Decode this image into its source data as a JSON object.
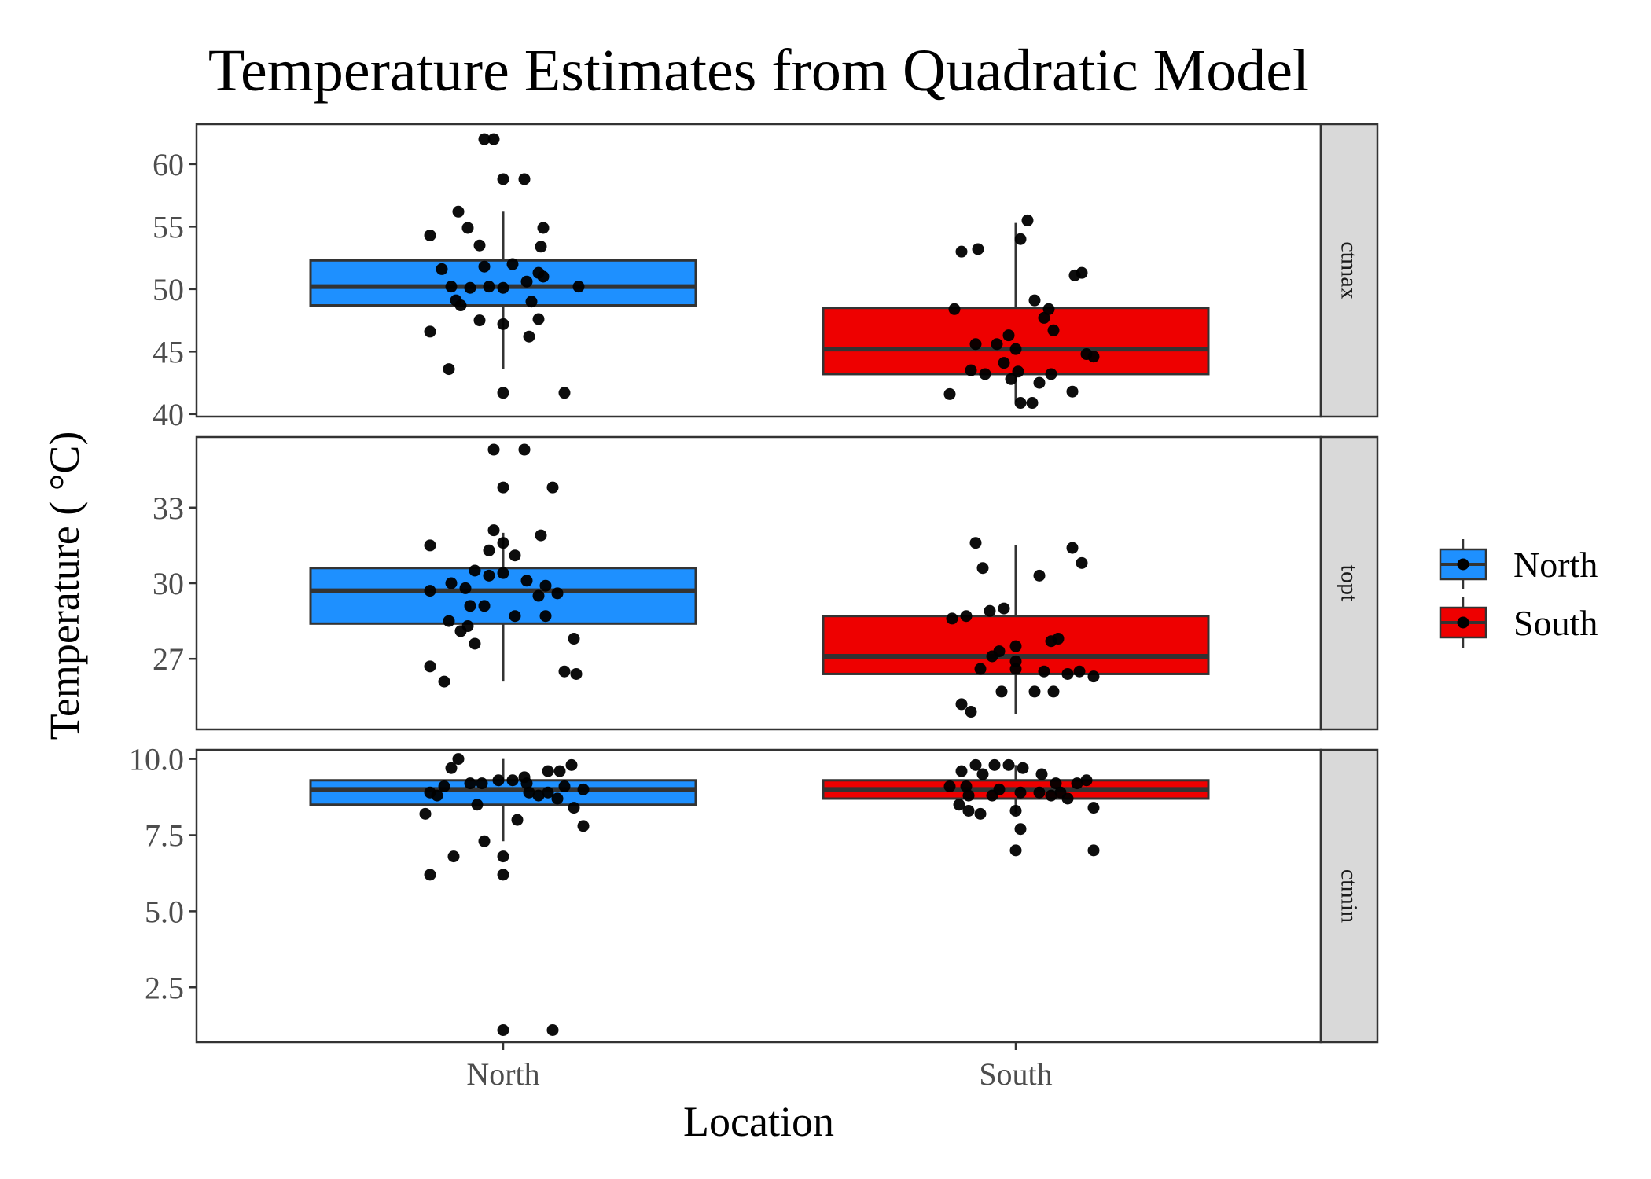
{
  "chart_data": {
    "type": "boxplot",
    "title": "Temperature Estimates from Quadratic Model",
    "xlabel": "Location",
    "ylabel": "Temperature ( °C)",
    "categories": [
      "North",
      "South"
    ],
    "legend": {
      "position": "right",
      "entries": [
        {
          "name": "North",
          "color": "#1e90ff"
        },
        {
          "name": "South",
          "color": "#ee0000"
        }
      ]
    },
    "grid": false,
    "facets": [
      {
        "label": "ctmax",
        "ylim": [
          39.8,
          63.2
        ],
        "yticks": [
          "40",
          "45",
          "50",
          "55",
          "60"
        ],
        "groups": [
          {
            "name": "North",
            "box": {
              "q1": 48.7,
              "median": 50.2,
              "q3": 52.3,
              "whisker_low": 43.6,
              "whisker_high": 56.2
            },
            "points": [
              [
                -0.08,
                62
              ],
              [
                -0.04,
                62
              ],
              [
                0.0,
                58.8
              ],
              [
                0.09,
                58.8
              ],
              [
                -0.19,
                56.2
              ],
              [
                -0.15,
                54.9
              ],
              [
                0.17,
                54.9
              ],
              [
                -0.31,
                54.3
              ],
              [
                -0.1,
                53.5
              ],
              [
                0.16,
                53.4
              ],
              [
                -0.26,
                51.6
              ],
              [
                -0.08,
                51.8
              ],
              [
                0.04,
                52.0
              ],
              [
                0.15,
                51.3
              ],
              [
                0.17,
                51.0
              ],
              [
                -0.22,
                50.2
              ],
              [
                -0.14,
                50.1
              ],
              [
                -0.06,
                50.2
              ],
              [
                0.0,
                50.1
              ],
              [
                0.1,
                50.6
              ],
              [
                0.32,
                50.2
              ],
              [
                -0.2,
                49.1
              ],
              [
                -0.18,
                48.7
              ],
              [
                0.12,
                49.0
              ],
              [
                -0.1,
                47.5
              ],
              [
                0.0,
                47.2
              ],
              [
                0.15,
                47.6
              ],
              [
                0.11,
                46.2
              ],
              [
                -0.31,
                46.6
              ],
              [
                -0.23,
                43.6
              ],
              [
                0.0,
                41.7
              ],
              [
                0.26,
                41.7
              ]
            ]
          },
          {
            "name": "South",
            "box": {
              "q1": 43.2,
              "median": 45.2,
              "q3": 48.5,
              "whisker_low": 41.0,
              "whisker_high": 55.3
            },
            "points": [
              [
                0.05,
                55.5
              ],
              [
                0.02,
                54.0
              ],
              [
                -0.23,
                53.0
              ],
              [
                -0.16,
                53.2
              ],
              [
                0.25,
                51.1
              ],
              [
                0.28,
                51.3
              ],
              [
                0.08,
                49.1
              ],
              [
                0.14,
                48.4
              ],
              [
                -0.26,
                48.4
              ],
              [
                0.12,
                47.7
              ],
              [
                0.16,
                46.7
              ],
              [
                -0.03,
                46.3
              ],
              [
                0.3,
                44.8
              ],
              [
                0.33,
                44.6
              ],
              [
                -0.08,
                45.6
              ],
              [
                -0.17,
                45.6
              ],
              [
                0.0,
                45.2
              ],
              [
                -0.05,
                44.1
              ],
              [
                -0.19,
                43.5
              ],
              [
                -0.13,
                43.2
              ],
              [
                0.01,
                43.4
              ],
              [
                0.15,
                43.2
              ],
              [
                -0.02,
                42.8
              ],
              [
                0.1,
                42.5
              ],
              [
                0.24,
                41.8
              ],
              [
                -0.28,
                41.6
              ],
              [
                0.02,
                40.9
              ],
              [
                0.07,
                40.9
              ]
            ]
          }
        ]
      },
      {
        "label": "topt",
        "ylim": [
          24.2,
          35.8
        ],
        "yticks": [
          "27",
          "30",
          "33"
        ],
        "groups": [
          {
            "name": "North",
            "box": {
              "q1": 28.4,
              "median": 29.7,
              "q3": 30.6,
              "whisker_low": 26.1,
              "whisker_high": 32.0
            },
            "points": [
              [
                -0.04,
                35.3
              ],
              [
                0.09,
                35.3
              ],
              [
                0.0,
                33.8
              ],
              [
                0.21,
                33.8
              ],
              [
                -0.04,
                32.1
              ],
              [
                0.16,
                31.9
              ],
              [
                -0.31,
                31.5
              ],
              [
                0.0,
                31.6
              ],
              [
                -0.06,
                31.3
              ],
              [
                0.05,
                31.1
              ],
              [
                -0.12,
                30.5
              ],
              [
                -0.06,
                30.3
              ],
              [
                0.0,
                30.4
              ],
              [
                0.1,
                30.1
              ],
              [
                0.18,
                29.9
              ],
              [
                -0.22,
                30.0
              ],
              [
                -0.16,
                29.8
              ],
              [
                -0.31,
                29.7
              ],
              [
                0.15,
                29.5
              ],
              [
                0.23,
                29.6
              ],
              [
                -0.14,
                29.1
              ],
              [
                -0.08,
                29.1
              ],
              [
                0.05,
                28.7
              ],
              [
                0.18,
                28.7
              ],
              [
                -0.23,
                28.5
              ],
              [
                -0.15,
                28.3
              ],
              [
                -0.18,
                28.1
              ],
              [
                0.3,
                27.8
              ],
              [
                -0.12,
                27.6
              ],
              [
                -0.31,
                26.7
              ],
              [
                0.26,
                26.5
              ],
              [
                0.31,
                26.4
              ],
              [
                -0.25,
                26.1
              ]
            ]
          },
          {
            "name": "South",
            "box": {
              "q1": 26.4,
              "median": 27.1,
              "q3": 28.7,
              "whisker_low": 24.8,
              "whisker_high": 31.5
            },
            "points": [
              [
                -0.17,
                31.6
              ],
              [
                0.24,
                31.4
              ],
              [
                0.28,
                30.8
              ],
              [
                -0.14,
                30.6
              ],
              [
                0.1,
                30.3
              ],
              [
                -0.05,
                29.0
              ],
              [
                -0.11,
                28.9
              ],
              [
                -0.21,
                28.7
              ],
              [
                -0.27,
                28.6
              ],
              [
                0.18,
                27.8
              ],
              [
                0.15,
                27.7
              ],
              [
                -0.07,
                27.3
              ],
              [
                0.0,
                27.5
              ],
              [
                -0.1,
                27.1
              ],
              [
                0.0,
                26.9
              ],
              [
                -0.15,
                26.6
              ],
              [
                0.0,
                26.6
              ],
              [
                0.12,
                26.5
              ],
              [
                0.22,
                26.4
              ],
              [
                0.27,
                26.5
              ],
              [
                0.33,
                26.3
              ],
              [
                -0.06,
                25.7
              ],
              [
                0.08,
                25.7
              ],
              [
                0.16,
                25.7
              ],
              [
                -0.23,
                25.2
              ],
              [
                -0.19,
                24.9
              ]
            ]
          }
        ]
      },
      {
        "label": "ctmin",
        "ylim": [
          0.7,
          10.3
        ],
        "yticks": [
          "2.5",
          "5.0",
          "7.5",
          "10.0"
        ],
        "groups": [
          {
            "name": "North",
            "box": {
              "q1": 8.5,
              "median": 9.0,
              "q3": 9.3,
              "whisker_low": 7.3,
              "whisker_high": 10.0
            },
            "points": [
              [
                -0.19,
                10.0
              ],
              [
                -0.22,
                9.7
              ],
              [
                0.29,
                9.8
              ],
              [
                0.19,
                9.6
              ],
              [
                0.24,
                9.6
              ],
              [
                0.09,
                9.4
              ],
              [
                0.04,
                9.3
              ],
              [
                -0.14,
                9.2
              ],
              [
                -0.09,
                9.2
              ],
              [
                -0.02,
                9.3
              ],
              [
                0.1,
                9.2
              ],
              [
                0.26,
                9.1
              ],
              [
                -0.25,
                9.1
              ],
              [
                0.34,
                9.0
              ],
              [
                -0.31,
                8.9
              ],
              [
                -0.28,
                8.8
              ],
              [
                0.11,
                8.9
              ],
              [
                0.15,
                8.8
              ],
              [
                0.19,
                8.9
              ],
              [
                0.23,
                8.7
              ],
              [
                -0.11,
                8.5
              ],
              [
                0.3,
                8.4
              ],
              [
                -0.33,
                8.2
              ],
              [
                0.06,
                8.0
              ],
              [
                0.34,
                7.8
              ],
              [
                -0.08,
                7.3
              ],
              [
                -0.21,
                6.8
              ],
              [
                0.0,
                6.8
              ],
              [
                -0.31,
                6.2
              ],
              [
                0.0,
                6.2
              ],
              [
                0.0,
                1.1
              ],
              [
                0.21,
                1.1
              ]
            ]
          },
          {
            "name": "South",
            "box": {
              "q1": 8.7,
              "median": 9.0,
              "q3": 9.3,
              "whisker_low": 8.2,
              "whisker_high": 9.8
            },
            "points": [
              [
                -0.09,
                9.8
              ],
              [
                -0.17,
                9.8
              ],
              [
                -0.03,
                9.8
              ],
              [
                0.03,
                9.7
              ],
              [
                -0.23,
                9.6
              ],
              [
                -0.14,
                9.5
              ],
              [
                0.11,
                9.5
              ],
              [
                0.3,
                9.3
              ],
              [
                0.17,
                9.2
              ],
              [
                0.26,
                9.2
              ],
              [
                -0.21,
                9.1
              ],
              [
                -0.28,
                9.1
              ],
              [
                -0.07,
                9.0
              ],
              [
                0.02,
                8.9
              ],
              [
                0.1,
                8.9
              ],
              [
                0.19,
                8.9
              ],
              [
                -0.2,
                8.8
              ],
              [
                -0.1,
                8.8
              ],
              [
                0.15,
                8.8
              ],
              [
                0.22,
                8.7
              ],
              [
                -0.24,
                8.5
              ],
              [
                0.33,
                8.4
              ],
              [
                -0.2,
                8.3
              ],
              [
                -0.15,
                8.2
              ],
              [
                0.0,
                8.3
              ],
              [
                0.02,
                7.7
              ],
              [
                0.0,
                7.0
              ],
              [
                0.33,
                7.0
              ]
            ]
          }
        ]
      }
    ]
  }
}
